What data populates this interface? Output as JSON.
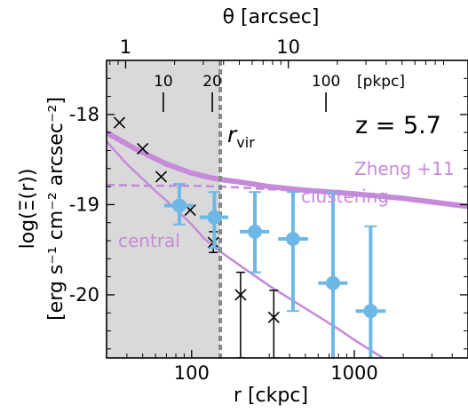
{
  "chart_data": {
    "type": "scatter",
    "xlabel": "r [ckpc]",
    "ylabel_line1": "log(Ξ(r))",
    "ylabel_line2": "[erg s⁻¹ cm⁻² arcsec⁻²]",
    "top_axis_label": "θ [arcsec]",
    "x_scale": "log",
    "xlim": [
      30,
      5000
    ],
    "ylim": [
      -20.7,
      -17.4
    ],
    "x_ticks": [
      100,
      1000
    ],
    "x_tick_labels": [
      "100",
      "1000"
    ],
    "y_ticks": [
      -18,
      -19,
      -20
    ],
    "y_tick_labels": [
      "-18",
      "-19",
      "-20"
    ],
    "top_ticks": [
      1,
      10
    ],
    "top_tick_labels": [
      "1",
      "10"
    ],
    "pkpc_ticks": [
      10,
      20,
      100
    ],
    "pkpc_tick_labels": [
      "10",
      "20",
      "100"
    ],
    "pkpc_unit": "[pkpc]",
    "shaded_region_x": [
      30,
      150
    ],
    "rvir_x": 150,
    "rvir_label": "r",
    "rvir_sub": "vir",
    "redshift_label": "z = 5.7",
    "annotations": {
      "zheng": "Zheng +11",
      "clustering": "clustering",
      "central": "central"
    },
    "colors": {
      "blue": "#6db8e6",
      "purple": "#c58ad9",
      "purple_light": "#d4a5e2",
      "shade": "#d9d9d9",
      "rvir_line": "#888888"
    },
    "series": [
      {
        "name": "Zheng +11",
        "style": "thick-line",
        "x": [
          30,
          45,
          70,
          100,
          130,
          150,
          200,
          300,
          500,
          1000,
          2000,
          3000,
          5000
        ],
        "y": [
          -18.2,
          -18.38,
          -18.55,
          -18.65,
          -18.7,
          -18.72,
          -18.75,
          -18.8,
          -18.84,
          -18.88,
          -18.93,
          -18.97,
          -19.02
        ]
      },
      {
        "name": "clustering",
        "style": "dashed",
        "x": [
          30,
          50,
          100,
          150,
          200,
          300,
          500,
          1000,
          2000,
          5000
        ],
        "y": [
          -18.78,
          -18.79,
          -18.79,
          -18.8,
          -18.81,
          -18.83,
          -18.85,
          -18.88,
          -18.93,
          -19.02
        ]
      },
      {
        "name": "central",
        "style": "line",
        "x": [
          30,
          40,
          60,
          80,
          100,
          120,
          150,
          200,
          300,
          500,
          800,
          1000,
          1500,
          1900
        ],
        "y": [
          -18.3,
          -18.55,
          -18.85,
          -19.05,
          -19.22,
          -19.38,
          -19.52,
          -19.68,
          -19.9,
          -20.15,
          -20.38,
          -20.5,
          -20.7,
          -20.85
        ]
      },
      {
        "name": "blue points",
        "style": "markers",
        "x": [
          84,
          138,
          245,
          420,
          740,
          1260
        ],
        "y": [
          -19.01,
          -19.14,
          -19.3,
          -19.38,
          -19.87,
          -20.18
        ],
        "xerr_low": [
          68,
          112,
          198,
          340,
          600,
          1020
        ],
        "xerr_high": [
          102,
          168,
          300,
          520,
          910,
          1560
        ],
        "yerr_low": [
          -19.22,
          -19.48,
          -19.75,
          -20.18,
          -20.7,
          -20.7
        ],
        "yerr_high": [
          -18.77,
          -18.86,
          -18.86,
          -18.86,
          -18.86,
          -19.24
        ]
      },
      {
        "name": "x markers",
        "style": "crosses",
        "x": [
          36,
          50,
          65,
          98,
          136,
          200,
          320
        ],
        "y": [
          -18.09,
          -18.38,
          -18.69,
          -19.06,
          -19.42,
          -20.0,
          -20.25
        ],
        "yerr_low": [
          null,
          null,
          null,
          null,
          -19.53,
          -20.7,
          -20.7
        ],
        "yerr_high": [
          null,
          null,
          null,
          null,
          -19.3,
          -19.75,
          -19.95
        ]
      }
    ]
  }
}
